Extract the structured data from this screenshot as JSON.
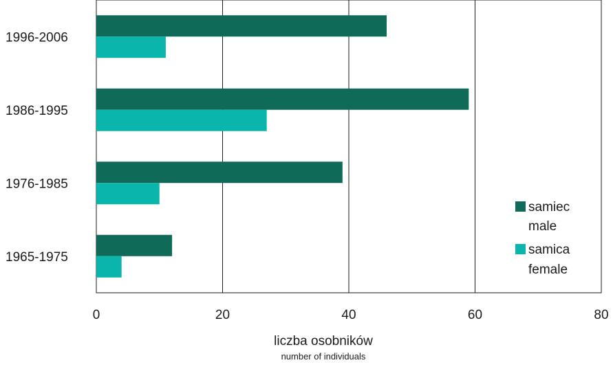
{
  "chart_data": {
    "type": "bar",
    "orientation": "horizontal",
    "categories": [
      "1965-1975",
      "1976-1985",
      "1986-1995",
      "1996-2006"
    ],
    "series": [
      {
        "name": "samiec",
        "name_en": "male",
        "color": "#0f6b58",
        "values": [
          12,
          39,
          59,
          46
        ]
      },
      {
        "name": "samica",
        "name_en": "female",
        "color": "#0ab5ac",
        "values": [
          4,
          10,
          27,
          11
        ]
      }
    ],
    "xlim": [
      0,
      80
    ],
    "xticks": [
      0,
      20,
      40,
      60,
      80
    ],
    "xlabel": "liczba osobników",
    "xlabel_en": "number of individuals",
    "ylabel": "",
    "title": "",
    "grid": "vertical",
    "legend_position": "bottom-right"
  }
}
